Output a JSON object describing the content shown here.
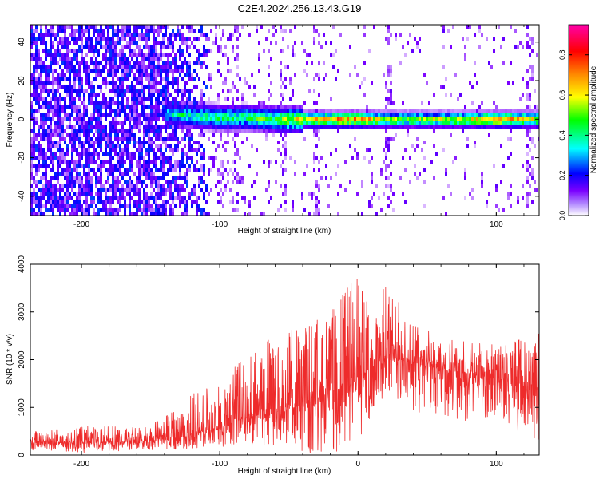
{
  "chart_data": [
    {
      "type": "heatmap",
      "title": "C2E4.2024.256.13.43.G19",
      "xlabel": "Height of straight line (km)",
      "ylabel": "Frequency (Hz)",
      "xlim": [
        -237,
        131
      ],
      "ylim": [
        -50,
        49
      ],
      "xticks": [
        -200,
        -100,
        0,
        100
      ],
      "xtick_labels": [
        "-200",
        "-100",
        "",
        "100"
      ],
      "yticks": [
        -40,
        -20,
        0,
        20,
        40
      ],
      "colorbar": {
        "label": "Normalized spectral amplitude",
        "range": [
          0,
          0.95
        ],
        "ticks": [
          0.0,
          0.2,
          0.4,
          0.6,
          0.8
        ],
        "tick_labels": [
          "0.0",
          "0.2",
          "0.4",
          "0.6",
          "0.8"
        ],
        "colormap": [
          "#ffffff",
          "#7b00ff",
          "#0000ff",
          "#00ffff",
          "#00ff00",
          "#ffff00",
          "#ff8800",
          "#ff0000",
          "#ff00aa"
        ]
      },
      "band": {
        "x_start": -140,
        "center_frequency_hz": [
          [
            -140,
            4
          ],
          [
            -120,
            3
          ],
          [
            -100,
            2
          ],
          [
            -80,
            2
          ],
          [
            -60,
            1
          ],
          [
            -40,
            1
          ],
          [
            -20,
            1
          ],
          [
            0,
            1
          ],
          [
            20,
            1
          ],
          [
            40,
            1
          ],
          [
            60,
            1
          ],
          [
            80,
            1
          ],
          [
            100,
            1
          ],
          [
            131,
            1
          ]
        ],
        "peak_amplitude": [
          [
            -140,
            0.45
          ],
          [
            -120,
            0.5
          ],
          [
            -100,
            0.55
          ],
          [
            -80,
            0.55
          ],
          [
            -60,
            0.6
          ],
          [
            -40,
            0.8
          ],
          [
            -20,
            0.85
          ],
          [
            0,
            0.9
          ],
          [
            20,
            0.7
          ],
          [
            40,
            0.7
          ],
          [
            60,
            0.7
          ],
          [
            80,
            0.75
          ],
          [
            90,
            0.85
          ],
          [
            100,
            0.9
          ],
          [
            131,
            0.7
          ]
        ]
      },
      "noise_region_x_end": -110,
      "vertical_streaks_x": [
        -90,
        -55,
        -30,
        22,
        123
      ]
    },
    {
      "type": "line",
      "title": "",
      "xlabel": "Height of straight line (km)",
      "ylabel": "SNR (10 * v/v)",
      "xlim": [
        -237,
        131
      ],
      "ylim": [
        0,
        4000
      ],
      "xticks": [
        -200,
        -100,
        0,
        100
      ],
      "xtick_labels": [
        "-200",
        "-100",
        "0",
        "100"
      ],
      "yticks": [
        0,
        1000,
        2000,
        3000,
        4000
      ],
      "color": "#ee2b2b",
      "envelope": {
        "x": [
          -237,
          -200,
          -160,
          -140,
          -120,
          -100,
          -80,
          -60,
          -40,
          -20,
          0,
          10,
          20,
          40,
          60,
          80,
          100,
          120,
          131
        ],
        "median": [
          250,
          260,
          280,
          330,
          420,
          600,
          800,
          900,
          1100,
          1300,
          1600,
          1850,
          2000,
          1950,
          1800,
          1700,
          1600,
          1500,
          1400
        ],
        "upper": [
          500,
          600,
          600,
          800,
          1300,
          1500,
          2200,
          2600,
          2800,
          3000,
          3900,
          3000,
          3600,
          2800,
          2500,
          2400,
          2300,
          2500,
          2600
        ],
        "lower": [
          100,
          50,
          100,
          120,
          100,
          150,
          200,
          100,
          0,
          0,
          300,
          800,
          1000,
          900,
          800,
          700,
          600,
          400,
          300
        ]
      }
    }
  ]
}
